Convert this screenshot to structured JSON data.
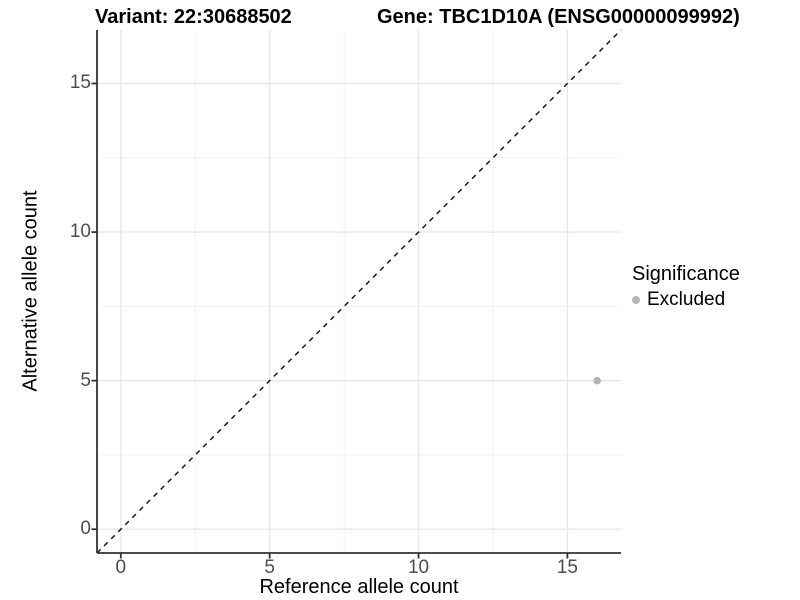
{
  "plot": {
    "title_variant": "Variant: 22:30688502",
    "title_gene": "Gene: TBC1D10A (ENSG00000099992)",
    "x_axis": {
      "label": "Reference allele count"
    },
    "y_axis": {
      "label": "Alternative allele count"
    },
    "legend": {
      "title": "Significance",
      "items": [
        {
          "label": "Excluded",
          "color": "#b5b5b5"
        }
      ]
    }
  },
  "colors": {
    "point_excluded": "#b5b5b5",
    "axis_line": "#333333",
    "tick_mark": "#333333",
    "tick_label": "#4d4d4d",
    "grid_major": "#e7e7e7",
    "grid_minor": "#f2f2f2",
    "identity_line": "#1a1a1a"
  },
  "chart_data": {
    "type": "scatter",
    "title": "Variant: 22:30688502 | Gene: TBC1D10A (ENSG00000099992)",
    "xlabel": "Reference allele count",
    "ylabel": "Alternative allele count",
    "xlim": [
      -0.8,
      16.8
    ],
    "ylim": [
      -0.8,
      16.8
    ],
    "x_ticks": [
      0,
      5,
      10,
      15
    ],
    "y_ticks": [
      0,
      5,
      10,
      15
    ],
    "x_minor_ticks": [
      2.5,
      7.5,
      12.5
    ],
    "y_minor_ticks": [
      2.5,
      7.5,
      12.5
    ],
    "grid": true,
    "legend_position": "right",
    "series": [
      {
        "name": "Excluded",
        "color": "#b5b5b5",
        "points": [
          {
            "x": 16,
            "y": 5
          }
        ]
      }
    ],
    "reference_line": {
      "type": "identity",
      "equation": "y = x",
      "style": "dashed",
      "color": "#1a1a1a"
    }
  }
}
